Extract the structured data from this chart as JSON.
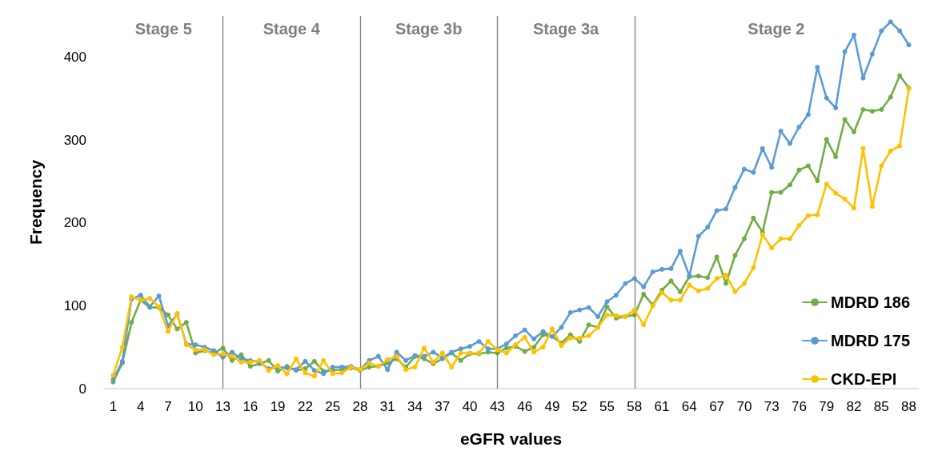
{
  "chart_data": {
    "type": "line",
    "xlabel": "eGFR values",
    "ylabel": "Frequency",
    "x": [
      1,
      2,
      3,
      4,
      5,
      6,
      7,
      8,
      9,
      10,
      11,
      12,
      13,
      14,
      15,
      16,
      17,
      18,
      19,
      20,
      21,
      22,
      23,
      24,
      25,
      26,
      27,
      28,
      29,
      30,
      31,
      32,
      33,
      34,
      35,
      36,
      37,
      38,
      39,
      40,
      41,
      42,
      43,
      44,
      45,
      46,
      47,
      48,
      49,
      50,
      51,
      52,
      53,
      54,
      55,
      56,
      57,
      58,
      59,
      60,
      61,
      62,
      63,
      64,
      65,
      66,
      67,
      68,
      69,
      70,
      71,
      72,
      73,
      74,
      75,
      76,
      77,
      78,
      79,
      80,
      81,
      82,
      83,
      84,
      85,
      86,
      87,
      88
    ],
    "xlim": [
      0,
      89
    ],
    "xticks": [
      1,
      4,
      7,
      10,
      13,
      16,
      19,
      22,
      25,
      28,
      31,
      34,
      37,
      40,
      43,
      46,
      49,
      52,
      55,
      58,
      61,
      64,
      67,
      70,
      73,
      76,
      79,
      82,
      85,
      88
    ],
    "ylim": [
      0,
      450
    ],
    "yticks": [
      0,
      100,
      200,
      300,
      400
    ],
    "series": [
      {
        "name": "MDRD 186",
        "color": "#70ad47",
        "values": [
          8,
          31,
          80,
          107,
          98,
          98,
          89,
          72,
          80,
          43,
          46,
          43,
          49,
          34,
          41,
          27,
          30,
          34,
          21,
          27,
          22,
          24,
          33,
          21,
          22,
          23,
          25,
          22,
          26,
          27,
          31,
          36,
          26,
          39,
          36,
          30,
          36,
          43,
          34,
          42,
          42,
          44,
          43,
          49,
          51,
          45,
          50,
          65,
          63,
          55,
          65,
          57,
          77,
          74,
          99,
          85,
          87,
          89,
          114,
          101,
          119,
          130,
          117,
          135,
          136,
          134,
          159,
          127,
          161,
          181,
          206,
          189,
          237,
          237,
          246,
          264,
          269,
          251,
          301,
          280,
          325,
          310,
          337,
          335,
          337,
          352,
          378,
          363
        ]
      },
      {
        "name": "MDRD 175",
        "color": "#5b9bd5",
        "values": [
          11,
          33,
          108,
          113,
          99,
          112,
          76,
          90,
          54,
          53,
          50,
          46,
          38,
          44,
          36,
          34,
          32,
          24,
          26,
          25,
          23,
          33,
          22,
          18,
          26,
          26,
          27,
          23,
          34,
          39,
          23,
          44,
          34,
          40,
          39,
          44,
          37,
          44,
          48,
          51,
          57,
          48,
          48,
          54,
          64,
          71,
          60,
          69,
          63,
          74,
          92,
          95,
          98,
          87,
          105,
          113,
          127,
          133,
          123,
          141,
          144,
          145,
          166,
          136,
          184,
          195,
          215,
          217,
          243,
          265,
          261,
          290,
          267,
          311,
          296,
          316,
          331,
          388,
          351,
          339,
          407,
          427,
          375,
          404,
          432,
          443,
          432,
          415
        ]
      },
      {
        "name": "CKD-EPI",
        "color": "#ffc000",
        "values": [
          16,
          50,
          111,
          107,
          109,
          99,
          69,
          91,
          53,
          47,
          47,
          41,
          42,
          39,
          32,
          32,
          34,
          22,
          28,
          18,
          36,
          19,
          15,
          34,
          18,
          19,
          26,
          23,
          31,
          27,
          35,
          39,
          23,
          26,
          49,
          32,
          43,
          26,
          43,
          43,
          43,
          57,
          47,
          43,
          53,
          62,
          44,
          50,
          72,
          52,
          61,
          61,
          64,
          74,
          89,
          88,
          87,
          95,
          77,
          100,
          116,
          107,
          107,
          125,
          118,
          121,
          133,
          137,
          117,
          127,
          146,
          186,
          170,
          181,
          181,
          197,
          209,
          210,
          247,
          236,
          229,
          218,
          290,
          220,
          269,
          287,
          293,
          362
        ]
      }
    ],
    "ref_lines": [
      {
        "axis": "x",
        "value": 13,
        "color": "#7f7f7f"
      },
      {
        "axis": "x",
        "value": 28,
        "color": "#7f7f7f"
      },
      {
        "axis": "x",
        "value": 43,
        "color": "#7f7f7f"
      },
      {
        "axis": "x",
        "value": 58,
        "color": "#7f7f7f"
      }
    ],
    "annotations": [
      "Stage 5",
      "Stage 4",
      "Stage 3b",
      "Stage 3a",
      "Stage 2"
    ],
    "grid": false,
    "legend": "bottom right",
    "marker": "circle",
    "line_style": "solid"
  }
}
